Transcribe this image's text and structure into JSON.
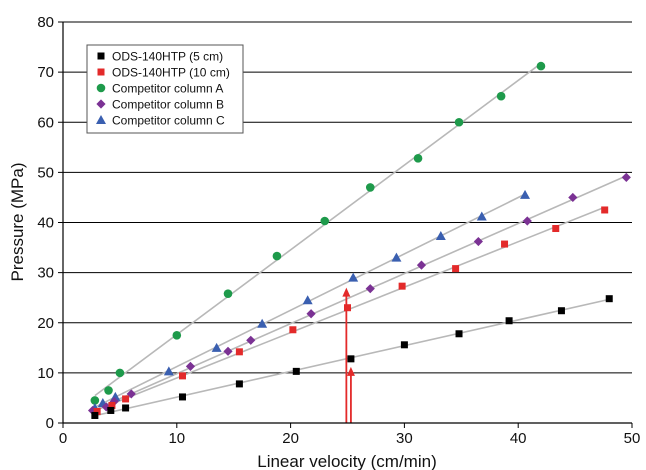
{
  "chart_data": {
    "type": "scatter",
    "title": "",
    "xlabel": "Linear velocity (cm/min)",
    "ylabel": "Pressure (MPa)",
    "xlim": [
      0,
      50
    ],
    "ylim": [
      0,
      80
    ],
    "xticks": [
      "0",
      "10",
      "20",
      "30",
      "40",
      "50"
    ],
    "yticks": [
      "0",
      "10",
      "20",
      "30",
      "40",
      "50",
      "60",
      "70",
      "80"
    ],
    "grid": "horizontal",
    "legend_position": "top-left",
    "trendlines": true,
    "series": [
      {
        "name": "ODS-140HTP (5 cm)",
        "marker": "square",
        "color": "#000000",
        "x": [
          2.8,
          4.2,
          5.5,
          10.5,
          15.5,
          20.5,
          25.3,
          30.0,
          34.8,
          39.2,
          43.8,
          48.0
        ],
        "y": [
          1.5,
          2.5,
          3.0,
          5.2,
          7.8,
          10.3,
          12.8,
          15.6,
          17.8,
          20.4,
          22.4,
          24.8
        ]
      },
      {
        "name": "ODS-140HTP (10 cm)",
        "marker": "square",
        "color": "#e32a2a",
        "x": [
          3.0,
          4.3,
          5.5,
          10.5,
          15.5,
          20.2,
          25.0,
          29.8,
          34.5,
          38.8,
          43.3,
          47.6
        ],
        "y": [
          2.3,
          3.5,
          4.8,
          9.4,
          14.2,
          18.6,
          23.0,
          27.3,
          30.8,
          35.7,
          38.8,
          42.5
        ]
      },
      {
        "name": "Competitor column A",
        "marker": "circle",
        "color": "#1e9a4b",
        "x": [
          2.8,
          4.0,
          5.0,
          10.0,
          14.5,
          18.8,
          23.0,
          27.0,
          31.2,
          34.8,
          38.5,
          42.0
        ],
        "y": [
          4.5,
          6.5,
          10.0,
          17.5,
          25.8,
          33.3,
          40.3,
          47.0,
          52.8,
          60.0,
          65.2,
          71.2
        ]
      },
      {
        "name": "Competitor column B",
        "marker": "diamond",
        "color": "#7b3294",
        "x": [
          2.6,
          3.8,
          4.5,
          6.0,
          11.2,
          14.5,
          16.5,
          21.8,
          27.0,
          31.5,
          36.5,
          40.8,
          44.8,
          49.5
        ],
        "y": [
          2.5,
          3.2,
          4.3,
          5.8,
          11.3,
          14.3,
          16.5,
          21.8,
          26.8,
          31.5,
          36.2,
          40.3,
          45.0,
          49.0
        ]
      },
      {
        "name": "Competitor column C",
        "marker": "triangle",
        "color": "#3a5fb0",
        "x": [
          2.8,
          3.5,
          4.6,
          9.3,
          13.5,
          17.5,
          21.5,
          25.5,
          29.3,
          33.2,
          36.8,
          40.6
        ],
        "y": [
          3.0,
          4.0,
          5.2,
          10.3,
          15.0,
          19.8,
          24.5,
          29.0,
          33.0,
          37.3,
          41.2,
          45.5
        ]
      }
    ],
    "annotations": [
      {
        "type": "arrow",
        "color": "#e32a2a",
        "x": 24.9,
        "y_from": 0,
        "y_to": 27
      },
      {
        "type": "arrow",
        "color": "#e32a2a",
        "x": 25.3,
        "y_from": 0,
        "y_to": 11.2
      }
    ]
  }
}
